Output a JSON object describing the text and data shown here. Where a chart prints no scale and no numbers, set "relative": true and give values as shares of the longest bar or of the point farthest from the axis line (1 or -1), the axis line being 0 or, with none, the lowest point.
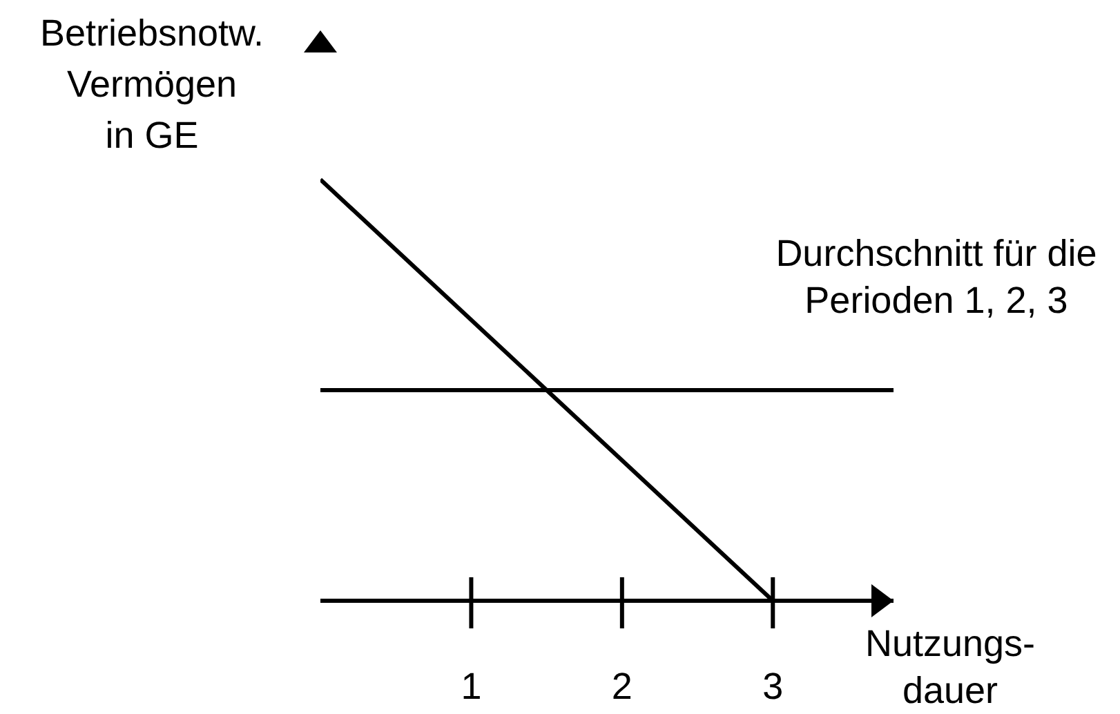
{
  "chart_data": {
    "type": "line",
    "relative": true,
    "xlabel": "Nutzungs-\ndauer",
    "ylabel": "Betriebsnotw.\nVermögen\nin GE",
    "xlim": [
      0,
      3.8
    ],
    "xticks": [
      1,
      2,
      3
    ],
    "marker": "none",
    "line_style": "solid",
    "series": [
      {
        "x": [
          0,
          3
        ],
        "values": [
          1,
          0
        ],
        "color": "#000000"
      },
      {
        "name": "Durchschnitt für die\nPerioden 1, 2, 3",
        "x": [
          0,
          3.8
        ],
        "values": [
          0.5,
          0.5
        ],
        "color": "#000000"
      }
    ]
  }
}
